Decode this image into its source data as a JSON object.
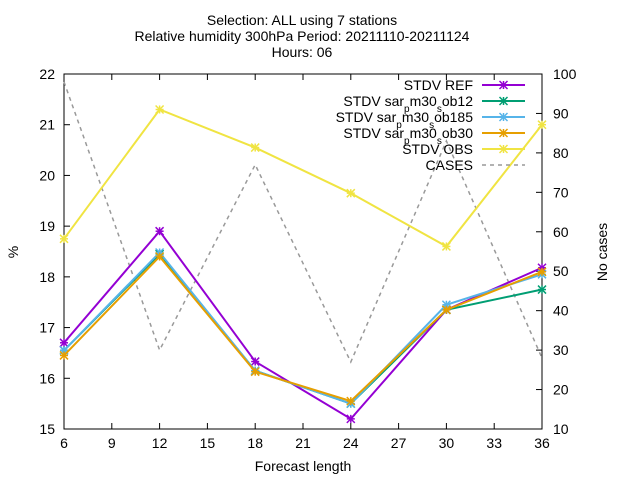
{
  "title_lines": [
    "Selection: ALL using     7 stations",
    "Relative humidity 300hPa   Period: 20211110-20211124",
    "Hours: 06"
  ],
  "chart_data": {
    "type": "line",
    "title": "Selection: ALL using     7 stations\nRelative humidity 300hPa   Period: 20211110-20211124\nHours: 06",
    "xlabel": "Forecast length",
    "ylabel": "%",
    "y2label": "No cases",
    "x": [
      6,
      12,
      18,
      24,
      30,
      36
    ],
    "xlim": [
      6,
      36
    ],
    "ylim": [
      15,
      22
    ],
    "y2lim": [
      10,
      100
    ],
    "xticks": [
      "6",
      "9",
      "12",
      "15",
      "18",
      "21",
      "24",
      "27",
      "30",
      "33",
      "36"
    ],
    "yticks": [
      "15",
      "16",
      "17",
      "18",
      "19",
      "20",
      "21",
      "22"
    ],
    "y2ticks": [
      "10",
      "20",
      "30",
      "40",
      "50",
      "60",
      "70",
      "80",
      "90",
      "100"
    ],
    "grid": false,
    "legend_position": "top-right",
    "series": [
      {
        "name": "STDV REF",
        "color": "#9400d3",
        "marker": "x-star",
        "values": [
          16.7,
          18.9,
          16.33,
          15.2,
          17.35,
          18.18
        ]
      },
      {
        "name": "STDV sar_m30_ob12",
        "name_parts": [
          "STDV sar",
          "p",
          "m30",
          "s",
          "ob12"
        ],
        "color": "#009e73",
        "marker": "x-star",
        "values": [
          16.55,
          18.45,
          16.15,
          15.5,
          17.35,
          17.75
        ]
      },
      {
        "name": "STDV sar_m30_ob185",
        "name_parts": [
          "STDV sar",
          "p",
          "m30",
          "s",
          "ob185"
        ],
        "color": "#56b4e9",
        "marker": "x-star",
        "values": [
          16.55,
          18.48,
          16.15,
          15.5,
          17.45,
          18.05
        ]
      },
      {
        "name": "STDV sar_m30_ob30",
        "name_parts": [
          "STDV sar",
          "p",
          "m30",
          "s",
          "ob30"
        ],
        "color": "#e69f00",
        "marker": "x-star",
        "values": [
          16.45,
          18.4,
          16.13,
          15.55,
          17.35,
          18.1
        ]
      },
      {
        "name": "STDV OBS",
        "color": "#f0e442",
        "marker": "x-star",
        "values": [
          18.75,
          21.3,
          20.55,
          19.65,
          18.6,
          21.0
        ]
      },
      {
        "name": "CASES",
        "color": "#999999",
        "dashed": true,
        "axis": "y2",
        "values": [
          98,
          30,
          77,
          27,
          83,
          28
        ]
      }
    ]
  }
}
